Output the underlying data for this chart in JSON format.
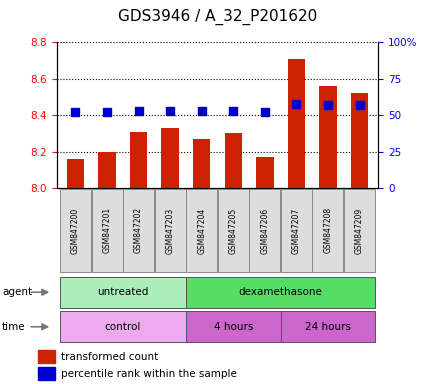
{
  "title": "GDS3946 / A_32_P201620",
  "samples": [
    "GSM847200",
    "GSM847201",
    "GSM847202",
    "GSM847203",
    "GSM847204",
    "GSM847205",
    "GSM847206",
    "GSM847207",
    "GSM847208",
    "GSM847209"
  ],
  "transformed_count": [
    8.16,
    8.2,
    8.31,
    8.33,
    8.27,
    8.3,
    8.17,
    8.71,
    8.56,
    8.52
  ],
  "percentile_rank": [
    52,
    52,
    53,
    53,
    53,
    53,
    52,
    58,
    57,
    57
  ],
  "ylim_left": [
    8.0,
    8.8
  ],
  "ylim_right": [
    0,
    100
  ],
  "yticks_left": [
    8.0,
    8.2,
    8.4,
    8.6,
    8.8
  ],
  "yticks_right": [
    0,
    25,
    50,
    75,
    100
  ],
  "ytick_labels_right": [
    "0",
    "25",
    "50",
    "75",
    "100%"
  ],
  "bar_color": "#cc2200",
  "dot_color": "#0000cc",
  "agent_groups": [
    {
      "label": "untreated",
      "start": 0,
      "end": 4,
      "color": "#aaeebb"
    },
    {
      "label": "dexamethasone",
      "start": 4,
      "end": 10,
      "color": "#55dd66"
    }
  ],
  "time_groups": [
    {
      "label": "control",
      "start": 0,
      "end": 4,
      "color": "#eeaaee"
    },
    {
      "label": "4 hours",
      "start": 4,
      "end": 7,
      "color": "#cc66cc"
    },
    {
      "label": "24 hours",
      "start": 7,
      "end": 10,
      "color": "#cc66cc"
    }
  ],
  "legend_items": [
    {
      "label": "transformed count",
      "color": "#cc2200"
    },
    {
      "label": "percentile rank within the sample",
      "color": "#0000cc"
    }
  ],
  "bar_width": 0.55,
  "dot_size": 40,
  "title_fontsize": 11,
  "tick_fontsize": 7.5,
  "sample_fontsize": 5.5,
  "row_fontsize": 7.5,
  "legend_fontsize": 7.5
}
